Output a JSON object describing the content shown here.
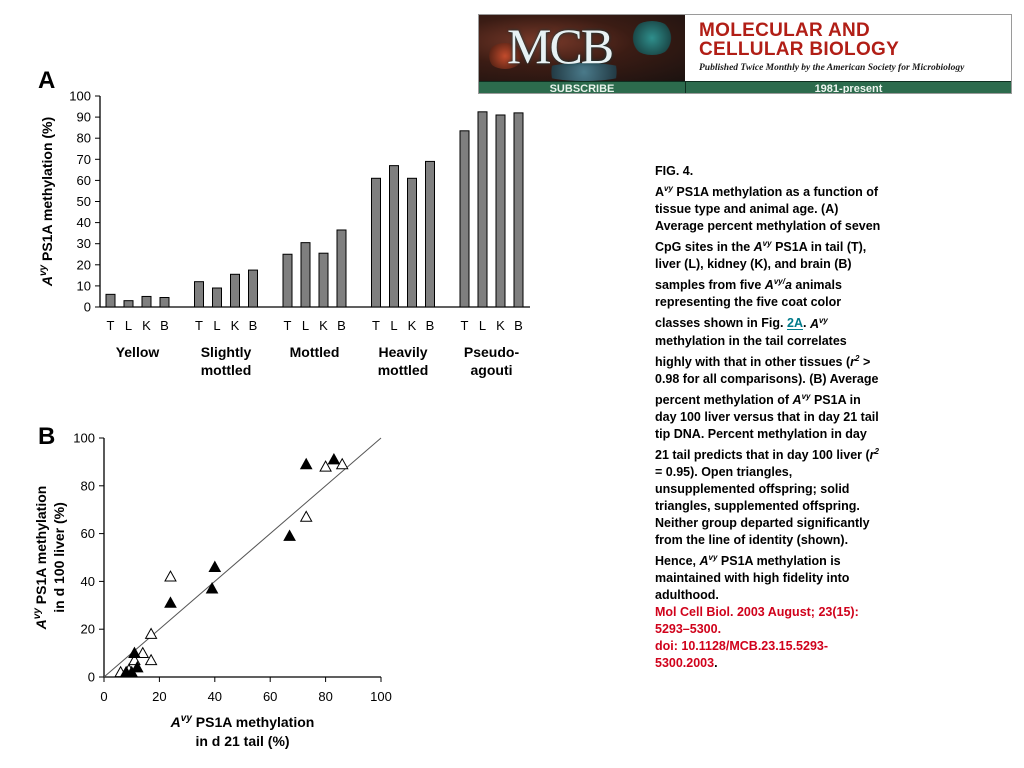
{
  "banner": {
    "logo_text": "MCB",
    "subscribe_label": "SUBSCRIBE",
    "journal_title_line1": "MOLECULAR AND",
    "journal_title_line2": "CELLULAR BIOLOGY",
    "tagline": "Published Twice Monthly by the American Society for Microbiology",
    "years": "1981-present"
  },
  "caption": {
    "fig_label": "FIG. 4.",
    "allele_A": "A",
    "allele_sup": "vy",
    "text_part1": "PS1A methylation as a function of tissue type and animal age. (A) Average percent methylation of seven CpG sites in the",
    "text_part2": "PS1A in tail (T), liver (L), kidney (K), and brain (B) samples from five",
    "genotype_sup": "vy/",
    "genotype_a": "a",
    "text_part3": "animals representing the five coat color classes shown in Fig.",
    "fig_link": "2A",
    "text_part4": "methylation in the tail correlates highly with that in other tissues (",
    "r_symbol": "r",
    "r_sup": "2",
    "text_part5": "> 0.98 for all comparisons). (B) Average percent methylation of",
    "text_part6": "PS1A in day 100 liver versus that in day 21 tail tip DNA. Percent methylation in day 21 tail predicts that in day 100 liver (",
    "text_part7": "= 0.95). Open triangles, unsupplemented offspring; solid triangles, supplemented offspring. Neither group departed significantly from the line of identity (shown). Hence,",
    "text_part8": "PS1A methylation is maintained with high fidelity into adulthood.",
    "citation_journal": "Mol Cell Biol. 2003 August; 23(15): 5293–5300.",
    "citation_doi": "doi: 10.1128/MCB.23.15.5293-5300.2003",
    "citation_end": "."
  },
  "chart_data": [
    {
      "type": "bar",
      "panel_label": "A",
      "ylabel_allele": "A",
      "ylabel_sup": "vy",
      "ylabel_rest": " PS1A methylation (%)",
      "ylim": [
        0,
        100
      ],
      "yticks": [
        0,
        10,
        20,
        30,
        40,
        50,
        60,
        70,
        80,
        90,
        100
      ],
      "tissues": [
        "T",
        "L",
        "K",
        "B"
      ],
      "groups": [
        {
          "label_lines": [
            "Yellow"
          ],
          "values": [
            6,
            3,
            5,
            4.5
          ]
        },
        {
          "label_lines": [
            "Slightly",
            "mottled"
          ],
          "values": [
            12,
            9,
            15.5,
            17.5
          ]
        },
        {
          "label_lines": [
            "Mottled"
          ],
          "values": [
            25,
            30.5,
            25.5,
            36.5
          ]
        },
        {
          "label_lines": [
            "Heavily",
            "mottled"
          ],
          "values": [
            61,
            67,
            61,
            69
          ]
        },
        {
          "label_lines": [
            "Pseudo-",
            "agouti"
          ],
          "values": [
            83.5,
            92.5,
            91,
            92
          ]
        }
      ],
      "bar_color": "#7f7f7f"
    },
    {
      "type": "scatter",
      "panel_label": "B",
      "xlabel_allele": "A",
      "xlabel_sup": "vy",
      "xlabel_line1_rest": " PS1A methylation",
      "xlabel_line2": "in d 21 tail (%)",
      "ylabel_allele": "A",
      "ylabel_sup": "vy",
      "ylabel_line1_rest": " PS1A methylation",
      "ylabel_line2": "in d 100 liver (%)",
      "xlim": [
        0,
        100
      ],
      "ylim": [
        0,
        100
      ],
      "xticks": [
        0,
        20,
        40,
        60,
        80,
        100
      ],
      "yticks": [
        0,
        20,
        40,
        60,
        80,
        100
      ],
      "identity_line": true,
      "series": [
        {
          "marker": "open-triangle",
          "points": [
            [
              6,
              2
            ],
            [
              9,
              3
            ],
            [
              11,
              7
            ],
            [
              14,
              10
            ],
            [
              17,
              7
            ],
            [
              17,
              18
            ],
            [
              24,
              42
            ],
            [
              73,
              67
            ],
            [
              80,
              88
            ],
            [
              86,
              89
            ]
          ]
        },
        {
          "marker": "solid-triangle",
          "points": [
            [
              8,
              2
            ],
            [
              10,
              2
            ],
            [
              11,
              10
            ],
            [
              12,
              4
            ],
            [
              24,
              31
            ],
            [
              39,
              37
            ],
            [
              40,
              46
            ],
            [
              67,
              59
            ],
            [
              73,
              89
            ],
            [
              83,
              91
            ]
          ]
        }
      ]
    }
  ]
}
